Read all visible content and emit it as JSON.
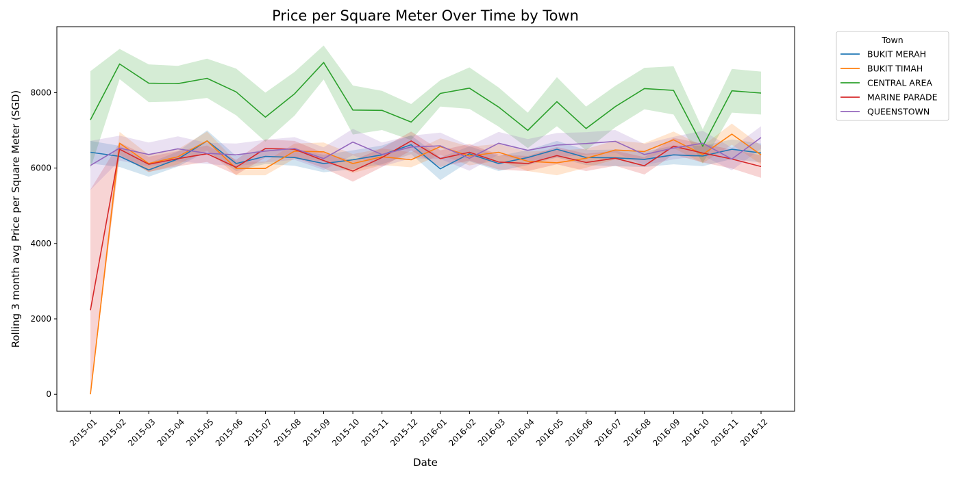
{
  "chart_data": {
    "type": "line",
    "title": "Price per Square Meter Over Time by Town",
    "xlabel": "Date",
    "ylabel": "Rolling 3 month avg Price per Square Meter (SGD)",
    "ylim": [
      -450,
      9750
    ],
    "yticks": [
      0,
      2000,
      4000,
      6000,
      8000
    ],
    "grid": false,
    "legend": {
      "title": "Town",
      "placement": "outside-top-right"
    },
    "categories": [
      "2015-01",
      "2015-02",
      "2015-03",
      "2015-04",
      "2015-05",
      "2015-06",
      "2015-07",
      "2015-08",
      "2015-09",
      "2015-10",
      "2015-11",
      "2015-12",
      "2016-01",
      "2016-02",
      "2016-03",
      "2016-04",
      "2016-05",
      "2016-06",
      "2016-07",
      "2016-08",
      "2016-09",
      "2016-10",
      "2016-11",
      "2016-12"
    ],
    "series": [
      {
        "name": "BUKIT MERAH",
        "color": "#1f77b4",
        "values": [
          6420,
          6310,
          5950,
          6240,
          6720,
          6120,
          6310,
          6280,
          6120,
          6220,
          6350,
          6620,
          5980,
          6380,
          6120,
          6280,
          6500,
          6280,
          6270,
          6230,
          6350,
          6320,
          6500,
          6400
        ],
        "ci": [
          300,
          280,
          180,
          200,
          280,
          200,
          200,
          220,
          230,
          250,
          250,
          250,
          300,
          200,
          200,
          200,
          220,
          200,
          220,
          200,
          250,
          270,
          260,
          250
        ]
      },
      {
        "name": "BUKIT TIMAH",
        "color": "#ff7f0e",
        "values": [
          0,
          6660,
          6120,
          6300,
          6720,
          5990,
          5990,
          6450,
          6430,
          6120,
          6300,
          6220,
          6570,
          6320,
          6420,
          6180,
          6140,
          6260,
          6480,
          6440,
          6750,
          6360,
          6900,
          6350
        ],
        "ci": [
          20,
          300,
          230,
          200,
          250,
          180,
          180,
          200,
          250,
          250,
          220,
          200,
          220,
          250,
          220,
          260,
          330,
          250,
          250,
          220,
          220,
          230,
          280,
          250
        ]
      },
      {
        "name": "CENTRAL AREA",
        "color": "#2ca02c",
        "values": [
          7280,
          8760,
          8250,
          8240,
          8380,
          8020,
          7350,
          7970,
          8800,
          7540,
          7530,
          7220,
          7980,
          8120,
          7620,
          7000,
          7760,
          7050,
          7630,
          8110,
          8060,
          6580,
          8050,
          7990
        ],
        "ci": [
          1290,
          400,
          500,
          470,
          520,
          620,
          650,
          580,
          450,
          650,
          520,
          480,
          350,
          550,
          520,
          470,
          650,
          580,
          550,
          550,
          640,
          450,
          580,
          570
        ]
      },
      {
        "name": "MARINE PARADE",
        "color": "#d62728",
        "values": [
          2230,
          6500,
          6100,
          6250,
          6380,
          6020,
          6520,
          6500,
          6200,
          5920,
          6280,
          6720,
          6250,
          6420,
          6160,
          6120,
          6330,
          6150,
          6260,
          6060,
          6580,
          6400,
          6240,
          6040
        ],
        "ci": [
          3200,
          180,
          200,
          200,
          220,
          200,
          240,
          220,
          200,
          280,
          250,
          250,
          220,
          220,
          200,
          200,
          230,
          230,
          200,
          230,
          220,
          250,
          250,
          300
        ]
      },
      {
        "name": "QUEENSTOWN",
        "color": "#9467bd",
        "values": [
          6070,
          6530,
          6360,
          6510,
          6390,
          6350,
          6450,
          6520,
          6250,
          6690,
          6360,
          6560,
          6590,
          6260,
          6660,
          6470,
          6610,
          6650,
          6710,
          6360,
          6530,
          6660,
          6240,
          6810
        ],
        "ci": [
          650,
          330,
          320,
          330,
          280,
          300,
          300,
          300,
          300,
          350,
          320,
          300,
          350,
          330,
          300,
          300,
          320,
          300,
          300,
          280,
          300,
          330,
          300,
          300
        ]
      }
    ]
  }
}
